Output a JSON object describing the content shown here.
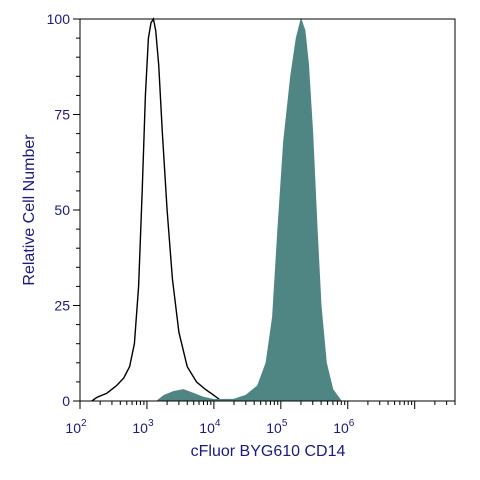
{
  "chart_data": {
    "type": "area",
    "xlabel": "cFluor BYG610 CD14",
    "ylabel": "Relative Cell Number",
    "x_scale": "log",
    "xlim": [
      100,
      40000000
    ],
    "ylim": [
      0,
      100
    ],
    "x_ticks": [
      {
        "base": "10",
        "exp": "2",
        "value": 100
      },
      {
        "base": "10",
        "exp": "3",
        "value": 1000
      },
      {
        "base": "10",
        "exp": "4",
        "value": 10000
      },
      {
        "base": "10",
        "exp": "5",
        "value": 100000
      },
      {
        "base": "10",
        "exp": "6",
        "value": 1000000
      }
    ],
    "y_ticks": [
      "0",
      "25",
      "50",
      "75",
      "100"
    ],
    "grid": false,
    "legend": "none",
    "colors": {
      "axis_text": "#1a1a80",
      "frame": "#000000",
      "stained_fill": "#4f8684",
      "control_line": "#000000"
    },
    "series": [
      {
        "style": "outline",
        "points": [
          [
            150,
            0
          ],
          [
            180,
            1
          ],
          [
            250,
            2
          ],
          [
            350,
            4
          ],
          [
            450,
            6
          ],
          [
            550,
            9
          ],
          [
            650,
            15
          ],
          [
            750,
            30
          ],
          [
            850,
            55
          ],
          [
            950,
            80
          ],
          [
            1050,
            95
          ],
          [
            1150,
            99
          ],
          [
            1250,
            100
          ],
          [
            1350,
            97
          ],
          [
            1500,
            88
          ],
          [
            1700,
            70
          ],
          [
            2000,
            50
          ],
          [
            2400,
            32
          ],
          [
            3000,
            18
          ],
          [
            4000,
            9
          ],
          [
            5500,
            5
          ],
          [
            7500,
            3
          ],
          [
            10000,
            1.5
          ],
          [
            13000,
            0
          ]
        ]
      },
      {
        "style": "filled",
        "points": [
          [
            1400,
            0
          ],
          [
            1800,
            1.5
          ],
          [
            2500,
            2.5
          ],
          [
            3500,
            3
          ],
          [
            5000,
            2
          ],
          [
            7000,
            1
          ],
          [
            10000,
            0.4
          ],
          [
            20000,
            0.5
          ],
          [
            30000,
            1.5
          ],
          [
            45000,
            4
          ],
          [
            60000,
            10
          ],
          [
            75000,
            22
          ],
          [
            90000,
            45
          ],
          [
            110000,
            68
          ],
          [
            140000,
            85
          ],
          [
            170000,
            95
          ],
          [
            200000,
            100
          ],
          [
            230000,
            97
          ],
          [
            260000,
            88
          ],
          [
            300000,
            70
          ],
          [
            350000,
            45
          ],
          [
            400000,
            25
          ],
          [
            480000,
            10
          ],
          [
            600000,
            3
          ],
          [
            800000,
            0
          ]
        ]
      }
    ]
  }
}
